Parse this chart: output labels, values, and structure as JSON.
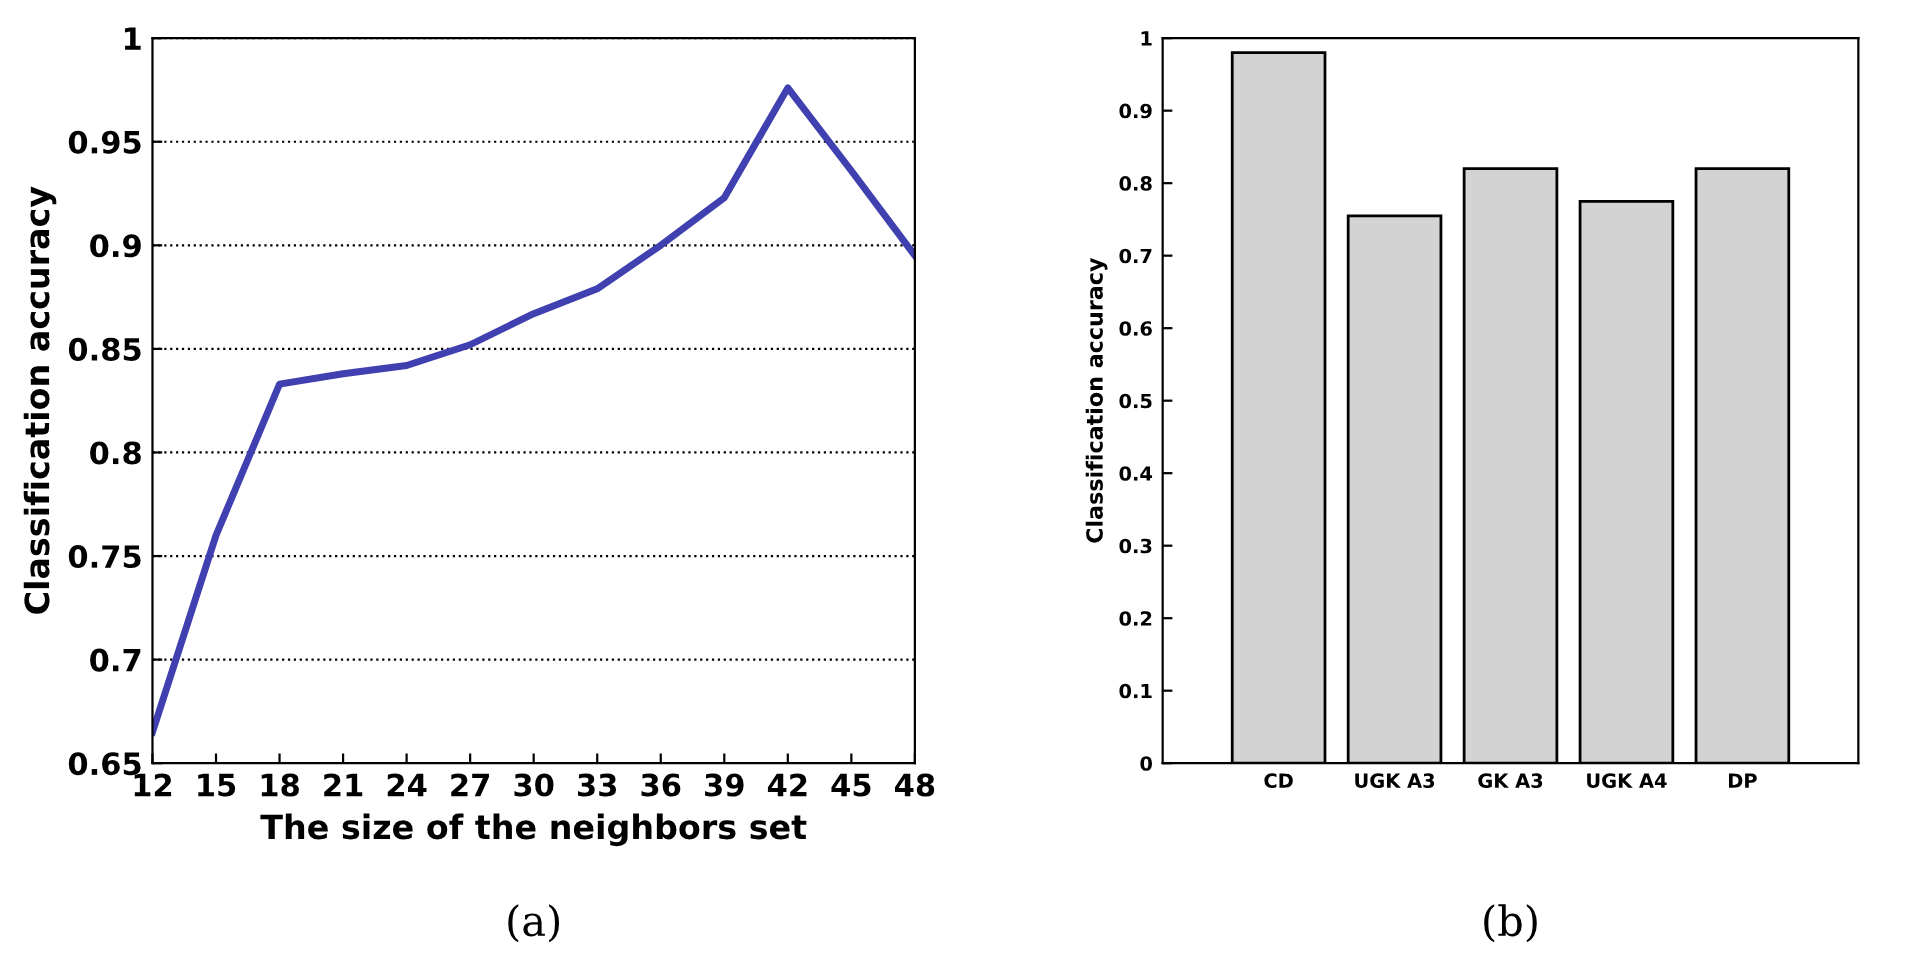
{
  "chart_data": [
    {
      "type": "line",
      "xlabel": "The size of the neighbors set",
      "ylabel": "Classification accuracy",
      "x": [
        12,
        15,
        18,
        21,
        24,
        27,
        30,
        33,
        36,
        39,
        42,
        45,
        48
      ],
      "series": [
        {
          "color": "#4040b0",
          "values": [
            0.665,
            0.76,
            0.833,
            0.838,
            0.842,
            0.852,
            0.867,
            0.879,
            0.9,
            0.923,
            0.976,
            0.936,
            0.895
          ]
        }
      ],
      "xlim": [
        12,
        48
      ],
      "xticks": [
        12,
        15,
        18,
        21,
        24,
        27,
        30,
        33,
        36,
        39,
        42,
        45,
        48
      ],
      "ylim": [
        0.65,
        1
      ],
      "yticks": [
        0.65,
        0.7,
        0.75,
        0.8,
        0.85,
        0.9,
        0.95,
        1
      ],
      "grid": "y",
      "line_style": "solid",
      "marker": "none",
      "annotations": [
        "(a)"
      ]
    },
    {
      "type": "bar",
      "ylabel": "Classification accuracy",
      "categories": [
        "CD",
        "UGK A3",
        "GK A3",
        "UGK A4",
        "DP"
      ],
      "series": [
        {
          "color": "#d3d3d3",
          "values": [
            0.98,
            0.755,
            0.82,
            0.775,
            0.82
          ]
        }
      ],
      "ylim": [
        0,
        1
      ],
      "yticks": [
        0,
        0.1,
        0.2,
        0.3,
        0.4,
        0.5,
        0.6,
        0.7,
        0.8,
        0.9,
        1
      ],
      "grid": false,
      "annotations": [
        "(b)"
      ]
    }
  ]
}
